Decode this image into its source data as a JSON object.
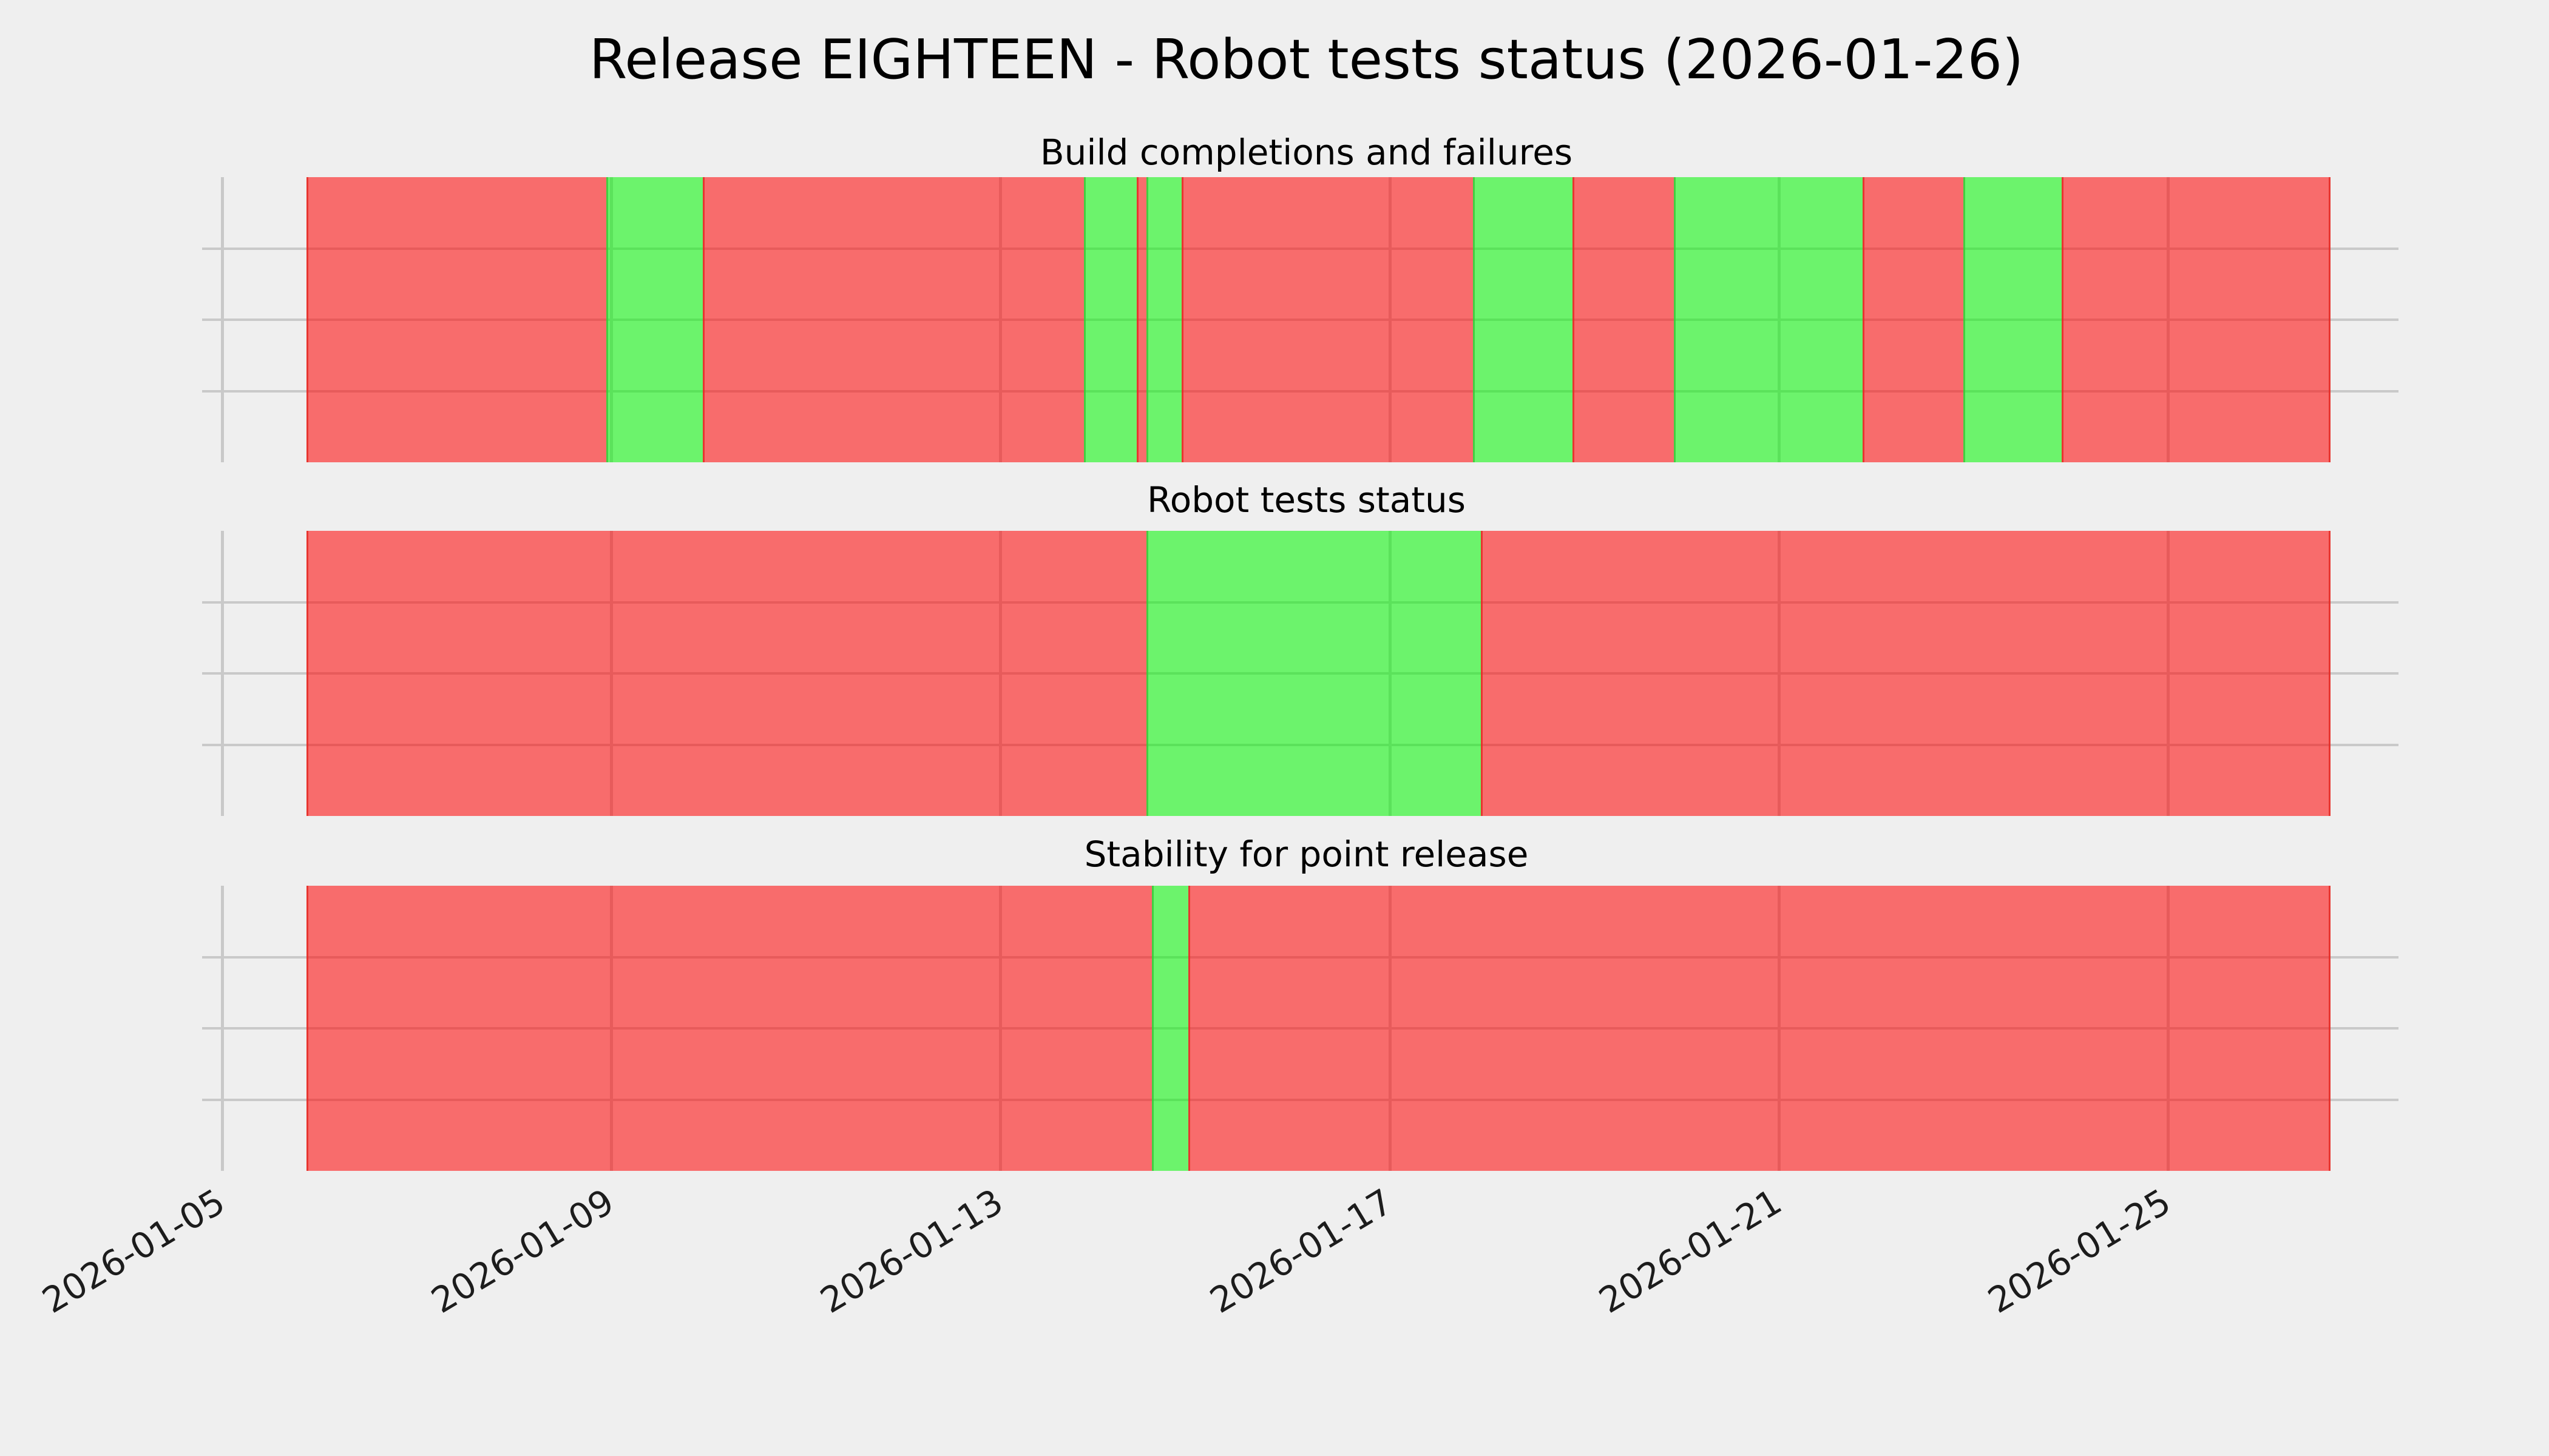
{
  "chart_data": {
    "type": "status-timeline",
    "title": "Release EIGHTEEN - Robot tests status (2026-01-26)",
    "grid": "on",
    "legend": "none",
    "background_color": "#efefef",
    "gridline_color": "#c9c9c9",
    "text_color": "#000000",
    "status_colors": {
      "fail_fill": "rgba(255,0,0,0.55)",
      "pass_fill": "rgba(0,245,0,0.55)",
      "fail_observed_hex": "#f57170",
      "pass_observed_hex": "#6cf06c"
    },
    "x_axis": {
      "unit": "day of January 2026",
      "tick_days": [
        5,
        9,
        13,
        17,
        21,
        25
      ],
      "tick_labels": [
        "2026-01-05",
        "2026-01-09",
        "2026-01-13",
        "2026-01-17",
        "2026-01-21",
        "2026-01-25"
      ],
      "label_rotation_deg": -31,
      "data_start_day": 5.87,
      "data_end_day": 26.67,
      "axis_range_days": [
        4.92,
        27.37
      ]
    },
    "y_axis": {
      "tick_labels": [],
      "internal_gridlines_per_panel": 3
    },
    "panels": [
      {
        "title": "Build completions and failures",
        "segments": [
          {
            "status": "fail",
            "start": 5.87,
            "end": 8.95
          },
          {
            "status": "pass",
            "start": 8.95,
            "end": 9.94
          },
          {
            "status": "fail",
            "start": 9.94,
            "end": 13.86
          },
          {
            "status": "pass",
            "start": 13.86,
            "end": 14.4
          },
          {
            "status": "fail",
            "start": 14.4,
            "end": 14.5
          },
          {
            "status": "pass",
            "start": 14.5,
            "end": 14.86
          },
          {
            "status": "fail",
            "start": 14.86,
            "end": 17.86
          },
          {
            "status": "pass",
            "start": 17.86,
            "end": 18.88
          },
          {
            "status": "fail",
            "start": 18.88,
            "end": 19.92
          },
          {
            "status": "pass",
            "start": 19.92,
            "end": 21.86
          },
          {
            "status": "fail",
            "start": 21.86,
            "end": 22.9
          },
          {
            "status": "pass",
            "start": 22.9,
            "end": 23.91
          },
          {
            "status": "fail",
            "start": 23.91,
            "end": 26.67
          }
        ]
      },
      {
        "title": "Robot tests status",
        "segments": [
          {
            "status": "fail",
            "start": 5.87,
            "end": 14.5
          },
          {
            "status": "pass",
            "start": 14.5,
            "end": 17.94
          },
          {
            "status": "fail",
            "start": 17.94,
            "end": 26.67
          }
        ]
      },
      {
        "title": "Stability for point release",
        "segments": [
          {
            "status": "fail",
            "start": 5.87,
            "end": 14.56
          },
          {
            "status": "pass",
            "start": 14.56,
            "end": 14.93
          },
          {
            "status": "fail",
            "start": 14.93,
            "end": 26.67
          }
        ]
      }
    ]
  }
}
